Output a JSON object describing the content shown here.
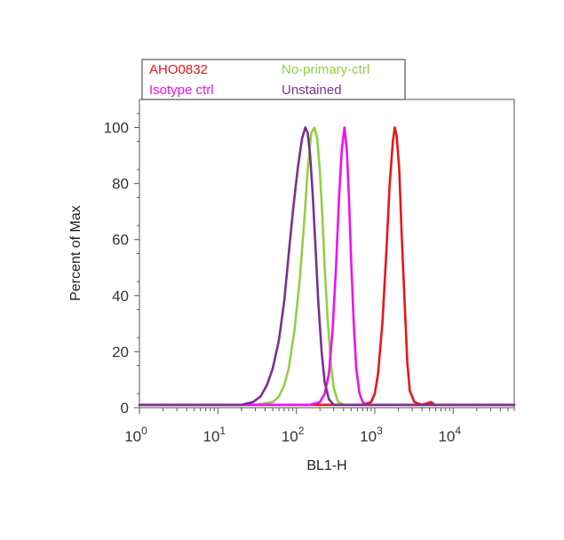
{
  "chart_data": {
    "type": "line",
    "title": "",
    "xlabel": "BL1-H",
    "ylabel": "Percent of Max",
    "x_scale": "log",
    "xlim": [
      1,
      60000
    ],
    "ylim": [
      0,
      110
    ],
    "x_ticks": [
      {
        "value": 1,
        "base": "10",
        "exp": "0"
      },
      {
        "value": 10,
        "base": "10",
        "exp": "1"
      },
      {
        "value": 100,
        "base": "10",
        "exp": "2"
      },
      {
        "value": 1000,
        "base": "10",
        "exp": "3"
      },
      {
        "value": 10000,
        "base": "10",
        "exp": "4"
      }
    ],
    "y_ticks": [
      0,
      20,
      40,
      60,
      80,
      100
    ],
    "grid": false,
    "legend_position": "top-left",
    "series": [
      {
        "name": "AHO0832",
        "color": "#e8151b",
        "x": [
          1,
          400,
          700,
          900,
          1000,
          1100,
          1250,
          1400,
          1550,
          1700,
          1800,
          1900,
          2050,
          2200,
          2400,
          2600,
          2800,
          3200,
          4000,
          5200,
          5800,
          7000,
          60000
        ],
        "y": [
          1,
          1,
          1,
          2,
          5,
          12,
          30,
          55,
          80,
          95,
          100,
          97,
          85,
          62,
          38,
          16,
          6,
          2,
          1,
          2,
          1,
          1,
          1
        ]
      },
      {
        "name": "No-primary-ctrl",
        "color": "#93cf45",
        "x": [
          1,
          30,
          50,
          60,
          70,
          80,
          95,
          110,
          125,
          140,
          155,
          170,
          185,
          200,
          215,
          230,
          250,
          275,
          300,
          340,
          400,
          500,
          60000
        ],
        "y": [
          1,
          1,
          2,
          4,
          8,
          14,
          28,
          45,
          65,
          85,
          98,
          100,
          96,
          84,
          68,
          50,
          32,
          16,
          7,
          2,
          1,
          1,
          1
        ]
      },
      {
        "name": "Isotype ctrl",
        "color": "#ee11ee",
        "x": [
          1,
          150,
          200,
          230,
          260,
          290,
          320,
          350,
          380,
          410,
          440,
          470,
          500,
          540,
          580,
          640,
          700,
          800,
          60000
        ],
        "y": [
          1,
          1,
          2,
          5,
          12,
          28,
          50,
          75,
          92,
          100,
          92,
          74,
          52,
          30,
          14,
          5,
          2,
          1,
          1
        ]
      },
      {
        "name": "Unstained",
        "color": "#7b2f8f",
        "x": [
          1,
          20,
          28,
          35,
          42,
          50,
          60,
          70,
          80,
          92,
          105,
          118,
          130,
          140,
          150,
          162,
          175,
          190,
          210,
          230,
          260,
          300,
          60000
        ],
        "y": [
          1,
          1,
          2,
          4,
          8,
          14,
          24,
          38,
          55,
          72,
          86,
          96,
          100,
          98,
          90,
          76,
          58,
          38,
          20,
          9,
          3,
          1,
          1
        ]
      }
    ]
  }
}
